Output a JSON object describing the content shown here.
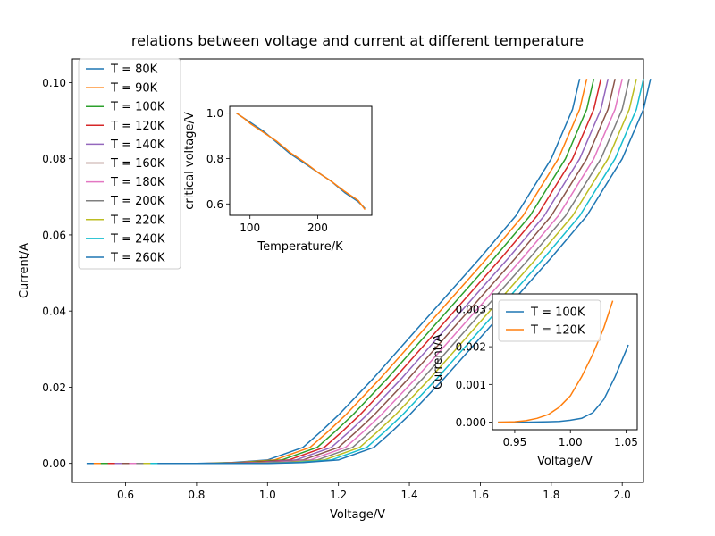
{
  "chart_data": [
    {
      "id": "main",
      "type": "line",
      "title": "relations between voltage and current at different temperature",
      "xlabel": "Voltage/V",
      "ylabel": "Current/A",
      "xlim": [
        0.45,
        2.06
      ],
      "ylim": [
        -0.005,
        0.1062
      ],
      "xticks": [
        0.6,
        0.8,
        1.0,
        1.2,
        1.4,
        1.6,
        1.8,
        2.0
      ],
      "xtick_labels": [
        "0.6",
        "0.8",
        "1.0",
        "1.2",
        "1.4",
        "1.6",
        "1.8",
        "2.0"
      ],
      "yticks": [
        0.0,
        0.02,
        0.04,
        0.06,
        0.08,
        0.1
      ],
      "ytick_labels": [
        "0.00",
        "0.02",
        "0.04",
        "0.06",
        "0.08",
        "0.10"
      ],
      "grid": false,
      "legend": "upper left",
      "series": [
        {
          "name": "T = 80K",
          "color": "#1f77b4",
          "x": [
            0.49,
            0.8,
            0.9,
            1.0,
            1.1,
            1.15,
            1.2,
            1.3,
            1.4,
            1.5,
            1.6,
            1.7,
            1.8,
            1.86,
            1.88
          ],
          "y": [
            0.0,
            0.0,
            0.0002,
            0.0009,
            0.0042,
            0.0083,
            0.0127,
            0.0225,
            0.033,
            0.0435,
            0.054,
            0.065,
            0.08,
            0.093,
            0.101
          ]
        },
        {
          "name": "T = 90K",
          "color": "#ff7f0e",
          "x": [
            0.51,
            0.82,
            0.92,
            1.02,
            1.12,
            1.17,
            1.22,
            1.32,
            1.42,
            1.52,
            1.62,
            1.72,
            1.82,
            1.88,
            1.9
          ],
          "y": [
            0.0,
            0.0,
            0.0002,
            0.0009,
            0.0042,
            0.0083,
            0.0127,
            0.0225,
            0.033,
            0.0435,
            0.054,
            0.065,
            0.08,
            0.093,
            0.101
          ]
        },
        {
          "name": "T = 100K",
          "color": "#2ca02c",
          "x": [
            0.53,
            0.84,
            0.94,
            1.04,
            1.14,
            1.19,
            1.24,
            1.34,
            1.44,
            1.54,
            1.64,
            1.74,
            1.84,
            1.9,
            1.92
          ],
          "y": [
            0.0,
            0.0,
            0.0002,
            0.0009,
            0.0042,
            0.0083,
            0.0127,
            0.0225,
            0.033,
            0.0435,
            0.054,
            0.065,
            0.08,
            0.093,
            0.101
          ]
        },
        {
          "name": "T = 120K",
          "color": "#d62728",
          "x": [
            0.55,
            0.86,
            0.96,
            1.06,
            1.16,
            1.21,
            1.26,
            1.36,
            1.46,
            1.56,
            1.66,
            1.76,
            1.86,
            1.92,
            1.94
          ],
          "y": [
            0.0,
            0.0,
            0.0002,
            0.0009,
            0.0042,
            0.0083,
            0.0127,
            0.0225,
            0.033,
            0.0435,
            0.054,
            0.065,
            0.08,
            0.093,
            0.101
          ]
        },
        {
          "name": "T = 140K",
          "color": "#9467bd",
          "x": [
            0.57,
            0.88,
            0.98,
            1.08,
            1.18,
            1.23,
            1.28,
            1.38,
            1.48,
            1.58,
            1.68,
            1.78,
            1.88,
            1.94,
            1.96
          ],
          "y": [
            0.0,
            0.0,
            0.0002,
            0.0009,
            0.0042,
            0.0083,
            0.0127,
            0.0225,
            0.033,
            0.0435,
            0.054,
            0.065,
            0.08,
            0.093,
            0.101
          ]
        },
        {
          "name": "T = 160K",
          "color": "#8c564b",
          "x": [
            0.59,
            0.9,
            1.0,
            1.1,
            1.2,
            1.25,
            1.3,
            1.4,
            1.5,
            1.6,
            1.7,
            1.8,
            1.9,
            1.96,
            1.98
          ],
          "y": [
            0.0,
            0.0,
            0.0002,
            0.0009,
            0.0042,
            0.0083,
            0.0127,
            0.0225,
            0.033,
            0.0435,
            0.054,
            0.065,
            0.08,
            0.093,
            0.101
          ]
        },
        {
          "name": "T = 180K",
          "color": "#e377c2",
          "x": [
            0.61,
            0.92,
            1.02,
            1.12,
            1.22,
            1.27,
            1.32,
            1.42,
            1.52,
            1.62,
            1.72,
            1.82,
            1.92,
            1.98,
            2.0
          ],
          "y": [
            0.0,
            0.0,
            0.0002,
            0.0009,
            0.0042,
            0.0083,
            0.0127,
            0.0225,
            0.033,
            0.0435,
            0.054,
            0.065,
            0.08,
            0.093,
            0.101
          ]
        },
        {
          "name": "T = 200K",
          "color": "#7f7f7f",
          "x": [
            0.63,
            0.94,
            1.04,
            1.14,
            1.24,
            1.29,
            1.34,
            1.44,
            1.54,
            1.64,
            1.74,
            1.84,
            1.94,
            2.0,
            2.02
          ],
          "y": [
            0.0,
            0.0,
            0.0002,
            0.0009,
            0.0042,
            0.0083,
            0.0127,
            0.0225,
            0.033,
            0.0435,
            0.054,
            0.065,
            0.08,
            0.093,
            0.101
          ]
        },
        {
          "name": "T = 220K",
          "color": "#bcbd22",
          "x": [
            0.65,
            0.96,
            1.06,
            1.16,
            1.26,
            1.31,
            1.36,
            1.46,
            1.56,
            1.66,
            1.76,
            1.86,
            1.96,
            2.02,
            2.04
          ],
          "y": [
            0.0,
            0.0,
            0.0002,
            0.0009,
            0.0042,
            0.0083,
            0.0127,
            0.0225,
            0.033,
            0.0435,
            0.054,
            0.065,
            0.08,
            0.093,
            0.101
          ]
        },
        {
          "name": "T = 240K",
          "color": "#17becf",
          "x": [
            0.67,
            0.98,
            1.08,
            1.18,
            1.28,
            1.33,
            1.38,
            1.48,
            1.58,
            1.68,
            1.78,
            1.88,
            1.98,
            2.04,
            2.06
          ],
          "y": [
            0.0,
            0.0,
            0.0002,
            0.0009,
            0.0042,
            0.0083,
            0.0127,
            0.0225,
            0.033,
            0.0435,
            0.054,
            0.065,
            0.08,
            0.093,
            0.101
          ]
        },
        {
          "name": "T = 260K",
          "color": "#1f77b4",
          "x": [
            0.69,
            1.0,
            1.1,
            1.2,
            1.3,
            1.35,
            1.4,
            1.5,
            1.6,
            1.7,
            1.8,
            1.9,
            2.0,
            2.06,
            2.08
          ],
          "y": [
            0.0,
            0.0,
            0.0002,
            0.0009,
            0.0042,
            0.0083,
            0.0127,
            0.0225,
            0.033,
            0.0435,
            0.054,
            0.065,
            0.08,
            0.093,
            0.101
          ]
        }
      ]
    },
    {
      "id": "inset_temperature",
      "type": "line",
      "title": "",
      "xlabel": "Temperature/K",
      "ylabel": "critical voltage/V",
      "xlim": [
        70,
        280
      ],
      "ylim": [
        0.55,
        1.03
      ],
      "xticks": [
        100,
        200
      ],
      "xtick_labels": [
        "100",
        "200"
      ],
      "yticks": [
        0.6,
        0.8,
        1.0
      ],
      "ytick_labels": [
        "0.6",
        "0.8",
        "1.0"
      ],
      "grid": false,
      "series": [
        {
          "color": "#1f77b4",
          "x": [
            80,
            90,
            100,
            120,
            140,
            160,
            180,
            200,
            220,
            240,
            260,
            270
          ],
          "y": [
            1.0,
            0.98,
            0.96,
            0.92,
            0.87,
            0.82,
            0.78,
            0.74,
            0.7,
            0.65,
            0.61,
            0.58
          ]
        },
        {
          "color": "#ff7f0e",
          "x": [
            80,
            90,
            100,
            120,
            140,
            160,
            180,
            200,
            220,
            240,
            260,
            270
          ],
          "y": [
            1.0,
            0.98,
            0.955,
            0.915,
            0.875,
            0.825,
            0.785,
            0.74,
            0.7,
            0.655,
            0.615,
            0.575
          ]
        }
      ]
    },
    {
      "id": "inset_zoom",
      "type": "line",
      "title": "",
      "xlabel": "Voltage/V",
      "ylabel": "Current/A",
      "xlim": [
        0.93,
        1.06
      ],
      "ylim": [
        -0.0002,
        0.0034
      ],
      "xticks": [
        0.95,
        1.0,
        1.05
      ],
      "xtick_labels": [
        "0.95",
        "1.00",
        "1.05"
      ],
      "yticks": [
        0.0,
        0.001,
        0.002,
        0.003
      ],
      "ytick_labels": [
        "0.000",
        "0.001",
        "0.002",
        "0.003"
      ],
      "grid": false,
      "legend": "upper left",
      "series": [
        {
          "name": "T = 100K",
          "color": "#1f77b4",
          "x": [
            0.935,
            0.96,
            0.98,
            0.99,
            1.0,
            1.01,
            1.02,
            1.03,
            1.04,
            1.05,
            1.052
          ],
          "y": [
            0.0,
            0.0,
            1e-05,
            2e-05,
            5e-05,
            0.0001,
            0.00025,
            0.0006,
            0.0012,
            0.0019,
            0.00205
          ]
        },
        {
          "name": "T = 120K",
          "color": "#ff7f0e",
          "x": [
            0.935,
            0.95,
            0.96,
            0.97,
            0.98,
            0.99,
            1.0,
            1.01,
            1.02,
            1.03,
            1.038
          ],
          "y": [
            0.0,
            1e-05,
            4e-05,
            0.0001,
            0.0002,
            0.0004,
            0.0007,
            0.0012,
            0.0018,
            0.0025,
            0.00322
          ]
        }
      ]
    }
  ]
}
